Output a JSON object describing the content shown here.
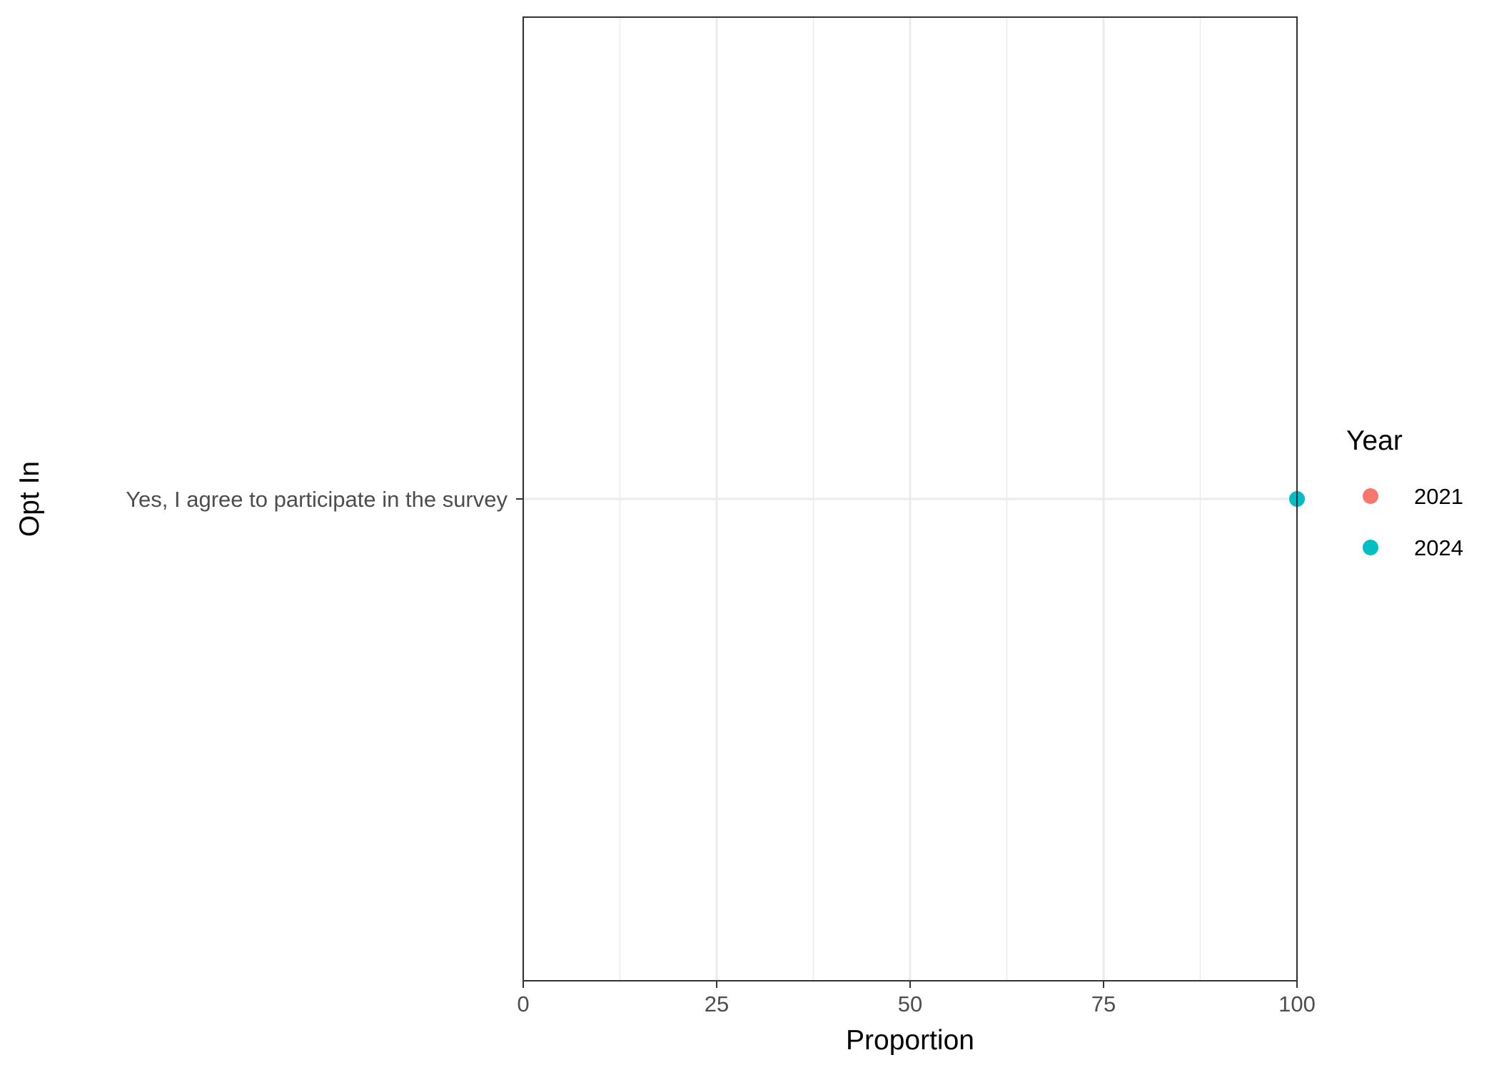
{
  "chart_data": {
    "type": "scatter",
    "xlabel": "Proportion",
    "ylabel": "Opt In",
    "xlim": [
      0,
      100
    ],
    "x_ticks": [
      "0",
      "25",
      "50",
      "75",
      "100"
    ],
    "x_tick_values": [
      0,
      25,
      50,
      75,
      100
    ],
    "categories": [
      "Yes, I agree to participate in the survey"
    ],
    "series": [
      {
        "name": "2021",
        "color": "#F8766D",
        "values": [
          100
        ]
      },
      {
        "name": "2024",
        "color": "#00BFC4",
        "values": [
          100
        ]
      }
    ],
    "legend": {
      "title": "Year",
      "placement": "right"
    },
    "grid": true
  }
}
